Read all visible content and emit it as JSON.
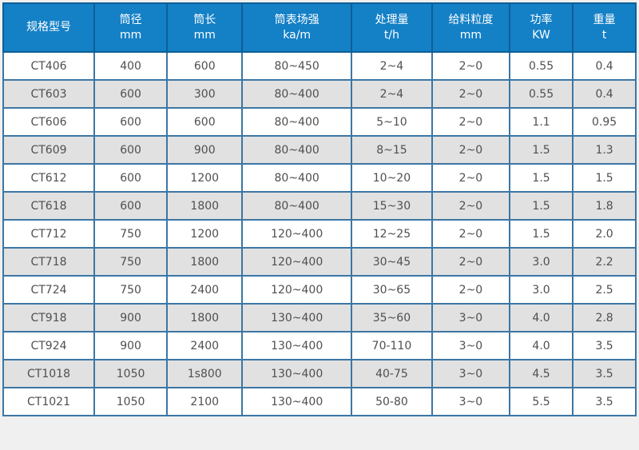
{
  "page": {
    "background_color": "#f0f0f0"
  },
  "table": {
    "header_bg_color": "#1480c6",
    "header_text_color": "#ffffff",
    "header_border_color": "#0e5f97",
    "cell_border_color": "#3c76a4",
    "row_stripe_even_color": "#e1e1e1",
    "row_stripe_odd_color": "#ffffff",
    "cell_text_color": "#4f4f4f",
    "columns": [
      {
        "name": "col-header-model",
        "label": "规格型号",
        "unit": ""
      },
      {
        "name": "col-header-drum-diameter",
        "label": "筒径",
        "unit": "mm"
      },
      {
        "name": "col-header-drum-length",
        "label": "筒长",
        "unit": "mm"
      },
      {
        "name": "col-header-field-strength",
        "label": "筒表场强",
        "unit": "ka/m"
      },
      {
        "name": "col-header-capacity",
        "label": "处理量",
        "unit": "t/h"
      },
      {
        "name": "col-header-feed-size",
        "label": "给料粒度",
        "unit": "mm"
      },
      {
        "name": "col-header-power",
        "label": "功率",
        "unit": "KW"
      },
      {
        "name": "col-header-weight",
        "label": "重量",
        "unit": "t"
      }
    ],
    "rows": [
      [
        "CT406",
        "400",
        "600",
        "80~450",
        "2~4",
        "2~0",
        "0.55",
        "0.4"
      ],
      [
        "CT603",
        "600",
        "300",
        "80~400",
        "2~4",
        "2~0",
        "0.55",
        "0.4"
      ],
      [
        "CT606",
        "600",
        "600",
        "80~400",
        "5~10",
        "2~0",
        "1.1",
        "0.95"
      ],
      [
        "CT609",
        "600",
        "900",
        "80~400",
        "8~15",
        "2~0",
        "1.5",
        "1.3"
      ],
      [
        "CT612",
        "600",
        "1200",
        "80~400",
        "10~20",
        "2~0",
        "1.5",
        "1.5"
      ],
      [
        "CT618",
        "600",
        "1800",
        "80~400",
        "15~30",
        "2~0",
        "1.5",
        "1.8"
      ],
      [
        "CT712",
        "750",
        "1200",
        "120~400",
        "12~25",
        "2~0",
        "1.5",
        "2.0"
      ],
      [
        "CT718",
        "750",
        "1800",
        "120~400",
        "30~45",
        "2~0",
        "3.0",
        "2.2"
      ],
      [
        "CT724",
        "750",
        "2400",
        "120~400",
        "30~65",
        "2~0",
        "3.0",
        "2.5"
      ],
      [
        "CT918",
        "900",
        "1800",
        "130~400",
        "35~60",
        "3~0",
        "4.0",
        "2.8"
      ],
      [
        "CT924",
        "900",
        "2400",
        "130~400",
        "70-110",
        "3~0",
        "4.0",
        "3.5"
      ],
      [
        "CT1018",
        "1050",
        "1s800",
        "130~400",
        "40-75",
        "3~0",
        "4.5",
        "3.5"
      ],
      [
        "CT1021",
        "1050",
        "2100",
        "130~400",
        "50-80",
        "3~0",
        "5.5",
        "3.5"
      ]
    ]
  }
}
